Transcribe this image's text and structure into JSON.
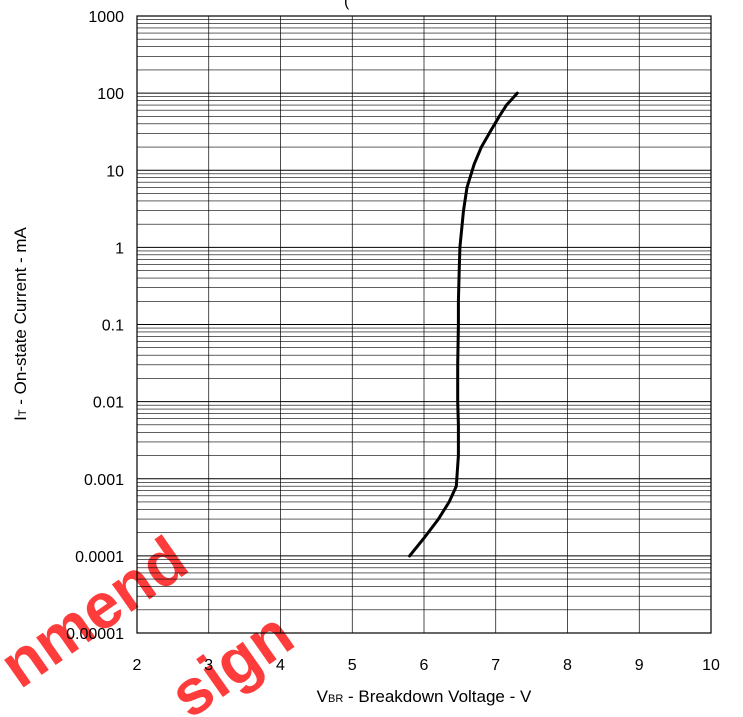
{
  "chart_data": {
    "type": "line",
    "title": "",
    "title_fragment": "(",
    "xlabel": {
      "main": "V",
      "sub": "BR",
      "rest": " - Breakdown Voltage - V"
    },
    "ylabel": {
      "main": "I",
      "sub": "T",
      "rest": " - On-state Current - mA"
    },
    "x_ticks": [
      "2",
      "3",
      "4",
      "5",
      "6",
      "7",
      "8",
      "9",
      "10"
    ],
    "y_ticks": [
      "0.00001",
      "0.0001",
      "0.001",
      "0.01",
      "0.1",
      "1",
      "10",
      "100",
      "1000"
    ],
    "xlim": [
      2,
      10
    ],
    "ylim": [
      1e-05,
      1000
    ],
    "y_scale": "log",
    "grid": true,
    "series": [
      {
        "color": "#000000",
        "x": [
          5.8,
          6.0,
          6.2,
          6.35,
          6.45,
          6.48,
          6.48,
          6.47,
          6.47,
          6.48,
          6.48,
          6.49,
          6.5,
          6.55,
          6.6,
          6.7,
          6.8,
          6.95,
          7.05,
          7.15,
          7.3
        ],
        "y": [
          0.0001,
          0.00017,
          0.0003,
          0.0005,
          0.0008,
          0.002,
          0.005,
          0.01,
          0.03,
          0.1,
          0.2,
          0.5,
          1,
          3,
          6,
          12,
          20,
          35,
          50,
          70,
          100
        ]
      }
    ]
  },
  "watermark": {
    "line1": "nmend",
    "line2": "sign",
    "color": "#ff1a1a"
  }
}
